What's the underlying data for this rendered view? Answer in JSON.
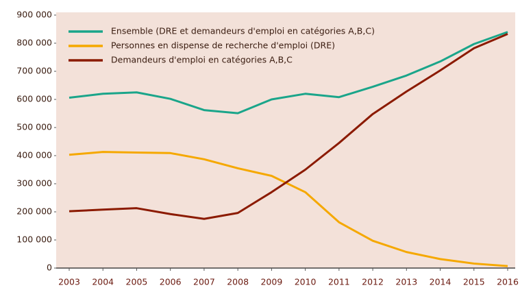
{
  "chart_data": {
    "type": "line",
    "categories": [
      "2003",
      "2004",
      "2005",
      "2006",
      "2007",
      "2008",
      "2009",
      "2010",
      "2011",
      "2012",
      "2013",
      "2014",
      "2015",
      "2016"
    ],
    "series": [
      {
        "name": "Ensemble (DRE et demandeurs d'emploi en catégories A,B,C)",
        "color": "#1aa58a",
        "values": [
          606000,
          620000,
          625000,
          602000,
          562000,
          551000,
          600000,
          620000,
          608000,
          645000,
          685000,
          735000,
          797000,
          840000
        ]
      },
      {
        "name": "Personnes en dispense de recherche d'emploi (DRE)",
        "color": "#f5a800",
        "values": [
          403000,
          413000,
          411000,
          409000,
          387000,
          355000,
          328000,
          270000,
          163000,
          97000,
          57000,
          32000,
          16000,
          7000
        ]
      },
      {
        "name": "Demandeurs d'emploi en catégories A,B,C",
        "color": "#8b1a00",
        "values": [
          202000,
          208000,
          213000,
          192000,
          175000,
          196000,
          270000,
          350000,
          445000,
          548000,
          628000,
          703000,
          782000,
          833000
        ]
      }
    ],
    "ylim": [
      0,
      900000
    ],
    "yticks": [
      0,
      {
        "value": 100000,
        "label": "100 000"
      },
      {
        "value": 200000,
        "label": "200 000"
      },
      {
        "value": 300000,
        "label": "300 000"
      },
      {
        "value": 400000,
        "label": "400 000"
      },
      {
        "value": 500000,
        "label": "500 000"
      },
      {
        "value": 600000,
        "label": "600 000"
      },
      {
        "value": 700000,
        "label": "700 000"
      },
      {
        "value": 800000,
        "label": "800 000"
      },
      {
        "value": 900000,
        "label": "900 000"
      }
    ],
    "legend": "upper left",
    "background": "#f3e1d9"
  }
}
